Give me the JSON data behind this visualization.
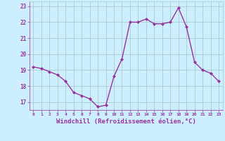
{
  "x": [
    0,
    1,
    2,
    3,
    4,
    5,
    6,
    7,
    8,
    9,
    10,
    11,
    12,
    13,
    14,
    15,
    16,
    17,
    18,
    19,
    20,
    21,
    22,
    23
  ],
  "y": [
    19.2,
    19.1,
    18.9,
    18.7,
    18.3,
    17.6,
    17.4,
    17.2,
    16.7,
    16.8,
    18.6,
    19.7,
    22.0,
    22.0,
    22.2,
    21.9,
    21.9,
    22.0,
    22.9,
    21.7,
    19.5,
    19.0,
    18.8,
    18.3
  ],
  "line_color": "#993399",
  "marker": "D",
  "marker_size": 2.0,
  "linewidth": 1.0,
  "bg_color": "#cceeff",
  "grid_color": "#aacccc",
  "xlabel": "Windchill (Refroidissement éolien,°C)",
  "xlabel_fontsize": 6.5,
  "xlabel_color": "#993399",
  "tick_color": "#993399",
  "ytick_labels": [
    "17",
    "18",
    "19",
    "20",
    "21",
    "22",
    "23"
  ],
  "yticks": [
    17,
    18,
    19,
    20,
    21,
    22,
    23
  ],
  "ylim": [
    16.5,
    23.3
  ],
  "xlim": [
    -0.5,
    23.5
  ],
  "xticks": [
    0,
    1,
    2,
    3,
    4,
    5,
    6,
    7,
    8,
    9,
    10,
    11,
    12,
    13,
    14,
    15,
    16,
    17,
    18,
    19,
    20,
    21,
    22,
    23
  ],
  "xtick_labels": [
    "0",
    "1",
    "2",
    "3",
    "4",
    "5",
    "6",
    "7",
    "8",
    "9",
    "10",
    "11",
    "12",
    "13",
    "14",
    "15",
    "16",
    "17",
    "18",
    "19",
    "20",
    "21",
    "22",
    "23"
  ]
}
